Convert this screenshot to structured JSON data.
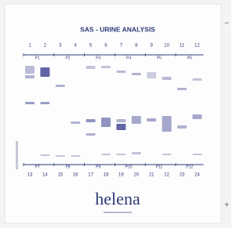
{
  "title": "SAS - URINE ANALYSIS",
  "top_lanes": [
    "1",
    "2",
    "3",
    "4",
    "5",
    "6",
    "7",
    "8",
    "9",
    "10",
    "11",
    "12"
  ],
  "top_groups": [
    "P1",
    "P2",
    "P3",
    "P4",
    "P5",
    "P6"
  ],
  "bottom_groups": [
    "P7",
    "P8",
    "P9",
    "P10",
    "P11",
    "P12"
  ],
  "bottom_lanes": [
    "13",
    "14",
    "15",
    "16",
    "17",
    "18",
    "19",
    "20",
    "21",
    "22",
    "23",
    "24"
  ],
  "brand": "helena",
  "polarity_top": "−",
  "polarity_bottom": "+"
}
